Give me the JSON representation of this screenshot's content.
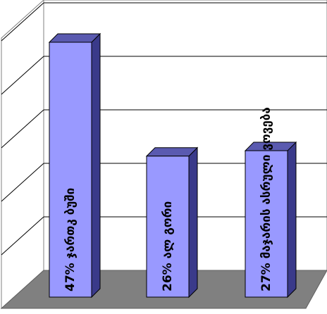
{
  "chart_data": {
    "type": "bar",
    "style": "3d",
    "title": "",
    "xlabel": "",
    "ylabel": "",
    "ylim": [
      0,
      50
    ],
    "grid": true,
    "gridlines": [
      10,
      20,
      30,
      40,
      50
    ],
    "categories": [
      "47% ჯართკ ბუში",
      "26% ალ გორი",
      "27% მაჯარის ასრული ვოვება"
    ],
    "series": [
      {
        "values": [
          47,
          26,
          27
        ]
      }
    ],
    "colors": {
      "bar_front": "#9999ff",
      "bar_side": "#3a3a8a",
      "bar_top": "#5a5ab0",
      "floor": "#808080",
      "wall": "#ffffff",
      "grid": "#000000"
    }
  }
}
